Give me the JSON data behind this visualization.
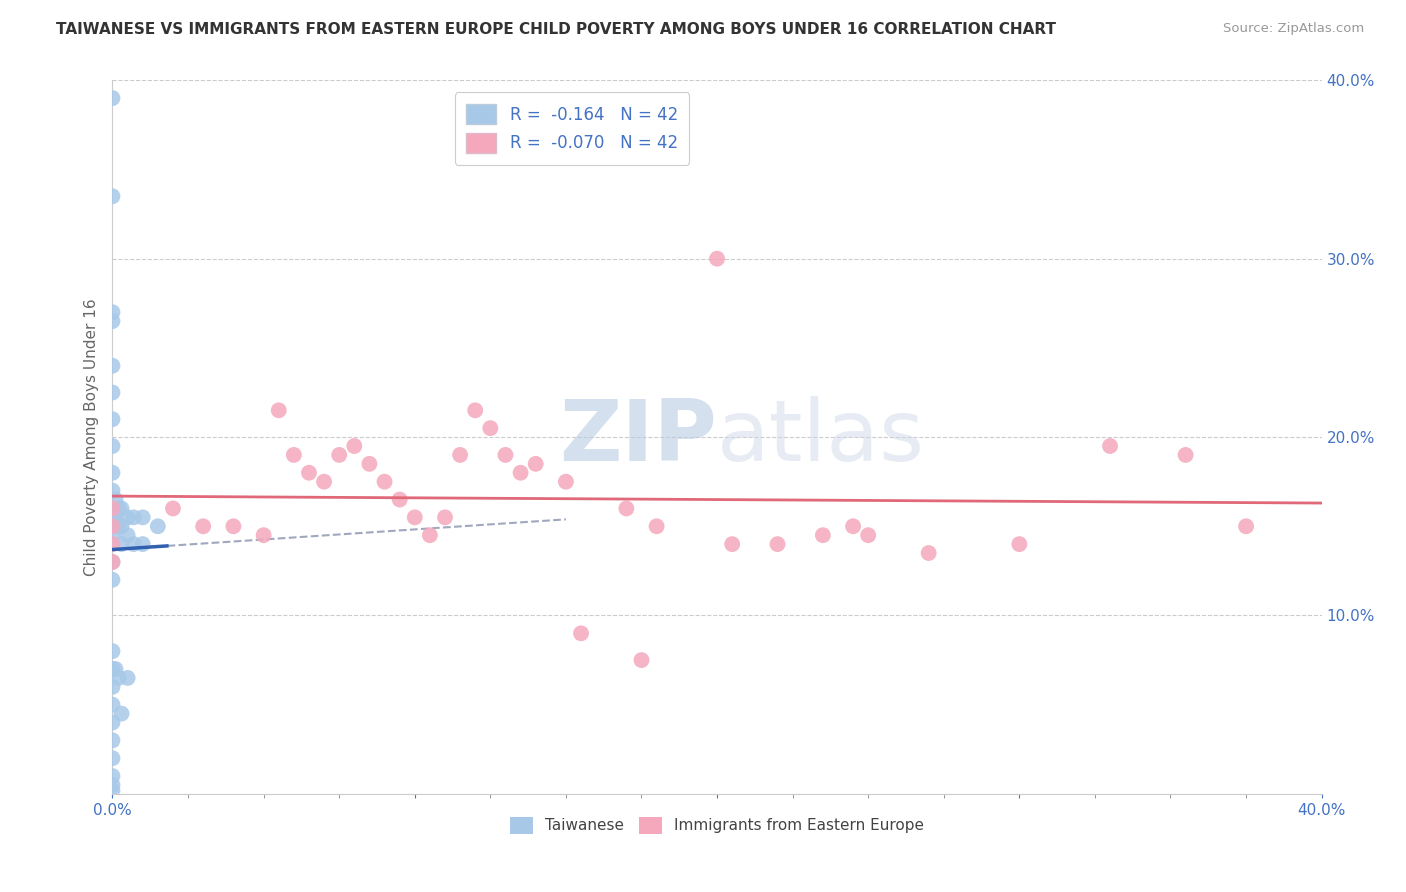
{
  "title": "TAIWANESE VS IMMIGRANTS FROM EASTERN EUROPE CHILD POVERTY AMONG BOYS UNDER 16 CORRELATION CHART",
  "source": "Source: ZipAtlas.com",
  "ylabel": "Child Poverty Among Boys Under 16",
  "xlim": [
    0.0,
    0.4
  ],
  "ylim": [
    0.0,
    0.4
  ],
  "r_taiwanese": -0.164,
  "n_taiwanese": 42,
  "r_eastern_europe": -0.07,
  "n_eastern_europe": 42,
  "color_taiwanese": "#a8c8e8",
  "color_eastern_europe": "#f5a8bc",
  "line_taiwanese": "#3060b0",
  "line_eastern_europe": "#e06878",
  "dash_color": "#a0a8c0",
  "watermark_color": "#d0dcea",
  "watermark": "ZIPatlas",
  "taiwanese_x": [
    0.0,
    0.0,
    0.0,
    0.0,
    0.0,
    0.0,
    0.0,
    0.0,
    0.0,
    0.0,
    0.0,
    0.0,
    0.0,
    0.0,
    0.0,
    0.0,
    0.0,
    0.0,
    0.0,
    0.0,
    0.0,
    0.0,
    0.0,
    0.0,
    0.001,
    0.001,
    0.001,
    0.002,
    0.002,
    0.002,
    0.003,
    0.003,
    0.003,
    0.003,
    0.005,
    0.005,
    0.005,
    0.007,
    0.007,
    0.01,
    0.01,
    0.015
  ],
  "taiwanese_y": [
    0.39,
    0.335,
    0.27,
    0.265,
    0.24,
    0.225,
    0.21,
    0.195,
    0.18,
    0.17,
    0.155,
    0.145,
    0.13,
    0.12,
    0.08,
    0.07,
    0.06,
    0.05,
    0.04,
    0.03,
    0.02,
    0.01,
    0.005,
    0.002,
    0.165,
    0.155,
    0.07,
    0.16,
    0.15,
    0.065,
    0.16,
    0.15,
    0.14,
    0.045,
    0.155,
    0.145,
    0.065,
    0.155,
    0.14,
    0.155,
    0.14,
    0.15
  ],
  "eastern_europe_x": [
    0.0,
    0.0,
    0.0,
    0.0,
    0.02,
    0.03,
    0.04,
    0.05,
    0.055,
    0.06,
    0.065,
    0.07,
    0.075,
    0.08,
    0.085,
    0.09,
    0.095,
    0.1,
    0.105,
    0.11,
    0.115,
    0.12,
    0.125,
    0.13,
    0.135,
    0.14,
    0.15,
    0.155,
    0.17,
    0.175,
    0.18,
    0.2,
    0.205,
    0.22,
    0.235,
    0.245,
    0.25,
    0.27,
    0.3,
    0.33,
    0.355,
    0.375
  ],
  "eastern_europe_y": [
    0.16,
    0.15,
    0.14,
    0.13,
    0.16,
    0.15,
    0.15,
    0.145,
    0.215,
    0.19,
    0.18,
    0.175,
    0.19,
    0.195,
    0.185,
    0.175,
    0.165,
    0.155,
    0.145,
    0.155,
    0.19,
    0.215,
    0.205,
    0.19,
    0.18,
    0.185,
    0.175,
    0.09,
    0.16,
    0.075,
    0.15,
    0.3,
    0.14,
    0.14,
    0.145,
    0.15,
    0.145,
    0.135,
    0.14,
    0.195,
    0.19,
    0.15
  ]
}
